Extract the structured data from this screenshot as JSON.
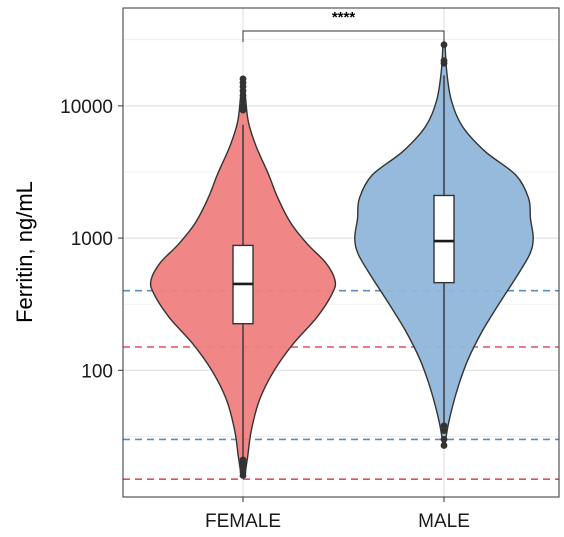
{
  "chart_data": {
    "type": "violin",
    "title": "",
    "xlabel": "",
    "ylabel": "Ferritin, ng/mL",
    "y_scale": "log10",
    "ylim": [
      11,
      55000
    ],
    "y_ticks": [
      100,
      1000,
      10000
    ],
    "y_tick_labels": [
      "100",
      "1000",
      "10000"
    ],
    "grid": true,
    "legend": "none",
    "categories": [
      "FEMALE",
      "MALE"
    ],
    "series": [
      {
        "category": "FEMALE",
        "color": "#F08080",
        "box": {
          "min": 22,
          "q1": 225,
          "median": 450,
          "q3": 880,
          "max": 7200
        },
        "outliers": [
          16,
          17,
          18,
          19,
          20,
          21,
          9300,
          10000,
          11000,
          12000,
          13000,
          14000,
          15000,
          16000
        ],
        "density_profile": [
          {
            "y": 16,
            "w": 0.02
          },
          {
            "y": 22,
            "w": 0.05
          },
          {
            "y": 35,
            "w": 0.09
          },
          {
            "y": 60,
            "w": 0.18
          },
          {
            "y": 100,
            "w": 0.34
          },
          {
            "y": 160,
            "w": 0.55
          },
          {
            "y": 250,
            "w": 0.8
          },
          {
            "y": 380,
            "w": 0.97
          },
          {
            "y": 480,
            "w": 1.0
          },
          {
            "y": 650,
            "w": 0.9
          },
          {
            "y": 900,
            "w": 0.7
          },
          {
            "y": 1300,
            "w": 0.52
          },
          {
            "y": 2000,
            "w": 0.38
          },
          {
            "y": 3000,
            "w": 0.28
          },
          {
            "y": 5000,
            "w": 0.14
          },
          {
            "y": 7500,
            "w": 0.06
          },
          {
            "y": 11000,
            "w": 0.03
          },
          {
            "y": 16000,
            "w": 0.01
          }
        ]
      },
      {
        "category": "MALE",
        "color": "#8FB6DA",
        "box": {
          "min": 40,
          "q1": 460,
          "median": 950,
          "q3": 2100,
          "max": 17000
        },
        "outliers": [
          27,
          30,
          35,
          38,
          21000,
          22000,
          29000
        ],
        "density_profile": [
          {
            "y": 27,
            "w": 0.01
          },
          {
            "y": 40,
            "w": 0.05
          },
          {
            "y": 70,
            "w": 0.14
          },
          {
            "y": 120,
            "w": 0.26
          },
          {
            "y": 200,
            "w": 0.42
          },
          {
            "y": 320,
            "w": 0.6
          },
          {
            "y": 500,
            "w": 0.78
          },
          {
            "y": 750,
            "w": 0.93
          },
          {
            "y": 1000,
            "w": 0.97
          },
          {
            "y": 1400,
            "w": 0.94
          },
          {
            "y": 2000,
            "w": 0.92
          },
          {
            "y": 3000,
            "w": 0.78
          },
          {
            "y": 4500,
            "w": 0.45
          },
          {
            "y": 7000,
            "w": 0.2
          },
          {
            "y": 11000,
            "w": 0.08
          },
          {
            "y": 18000,
            "w": 0.03
          },
          {
            "y": 29000,
            "w": 0.01
          }
        ]
      }
    ],
    "reference_lines": [
      {
        "y": 400,
        "color": "#5B8DBF",
        "style": "dashed"
      },
      {
        "y": 150,
        "color": "#E05060",
        "style": "dashed"
      },
      {
        "y": 30,
        "color": "#5B8DBF",
        "style": "dashed"
      },
      {
        "y": 15,
        "color": "#E05060",
        "style": "dashed"
      }
    ],
    "annotations": [
      {
        "type": "significance_bracket",
        "from": "FEMALE",
        "to": "MALE",
        "label": "****"
      }
    ]
  }
}
